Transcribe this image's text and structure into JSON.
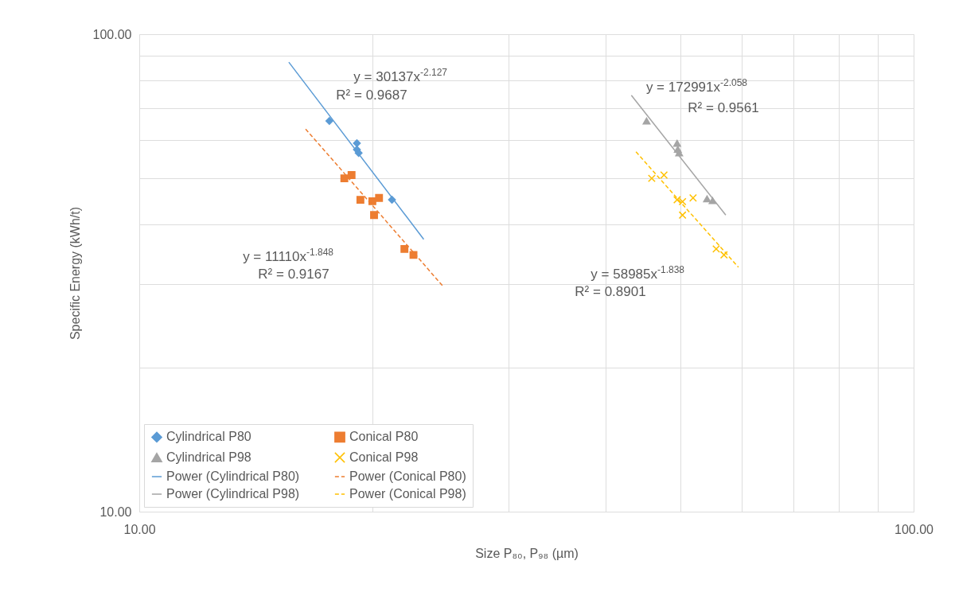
{
  "chart_data": {
    "type": "scatter",
    "xlabel": "Size P₈₀, P₉₈ (µm)",
    "ylabel": "Specific Energy (kWh/t)",
    "log": "xy",
    "grid": true,
    "legend": "bottom left",
    "xlim": [
      10,
      100
    ],
    "ylim": [
      10,
      100
    ],
    "xticks": [
      {
        "value": 10,
        "label": "10.00"
      },
      {
        "value": 20,
        "label": null
      },
      {
        "value": 30,
        "label": null
      },
      {
        "value": 40,
        "label": null
      },
      {
        "value": 50,
        "label": null
      },
      {
        "value": 60,
        "label": null
      },
      {
        "value": 70,
        "label": null
      },
      {
        "value": 80,
        "label": null
      },
      {
        "value": 90,
        "label": null
      },
      {
        "value": 100,
        "label": "100.00"
      }
    ],
    "yticks": [
      {
        "value": 10,
        "label": "10.00"
      },
      {
        "value": 20,
        "label": null
      },
      {
        "value": 30,
        "label": null
      },
      {
        "value": 40,
        "label": null
      },
      {
        "value": 50,
        "label": null
      },
      {
        "value": 60,
        "label": null
      },
      {
        "value": 70,
        "label": null
      },
      {
        "value": 80,
        "label": null
      },
      {
        "value": 90,
        "label": null
      },
      {
        "value": 100,
        "label": "100.00"
      }
    ],
    "series": [
      {
        "name": "Cylindrical P80",
        "marker": "diamond",
        "color": "#5b9bd5",
        "x": [
          17.6,
          19.1,
          19.1,
          19.2,
          21.2
        ],
        "values": [
          65.8,
          59.1,
          57.3,
          56.4,
          45.0
        ]
      },
      {
        "name": "Conical P80",
        "marker": "square",
        "color": "#ed7d31",
        "x": [
          18.4,
          18.8,
          19.3,
          20.0,
          20.4,
          20.1,
          22.0,
          22.6
        ],
        "values": [
          49.9,
          50.7,
          45.0,
          44.7,
          45.4,
          41.8,
          35.5,
          34.5
        ]
      },
      {
        "name": "Cylindrical P98",
        "marker": "triangle",
        "color": "#a5a5a5",
        "x": [
          45.2,
          49.5,
          49.6,
          49.8,
          54.1,
          55.0
        ],
        "values": [
          65.8,
          59.1,
          57.4,
          56.4,
          45.2,
          44.8
        ]
      },
      {
        "name": "Conical P98",
        "marker": "cross",
        "color": "#ffc000",
        "x": [
          45.9,
          47.6,
          49.5,
          50.3,
          51.9,
          50.3,
          55.6,
          56.9
        ],
        "values": [
          49.9,
          50.7,
          45.0,
          44.6,
          45.4,
          41.8,
          35.5,
          34.5
        ]
      },
      {
        "name": "Power (Cylindrical P80)",
        "type": "line",
        "line_style": "solid",
        "color": "#5b9bd5",
        "x": [
          15.6,
          23.3
        ],
        "values": [
          87.4,
          37.2
        ]
      },
      {
        "name": "Power (Conical P80)",
        "type": "line",
        "line_style": "dashed",
        "color": "#ed7d31",
        "x": [
          16.4,
          24.7
        ],
        "values": [
          63.3,
          29.6
        ]
      },
      {
        "name": "Power (Cylindrical P98)",
        "type": "line",
        "line_style": "solid",
        "color": "#a5a5a5",
        "x": [
          43.2,
          57.2
        ],
        "values": [
          74.5,
          41.8
        ]
      },
      {
        "name": "Power (Conical P98)",
        "type": "line",
        "line_style": "dashed",
        "color": "#ffc000",
        "x": [
          43.8,
          59.4
        ],
        "values": [
          56.7,
          32.5
        ]
      }
    ],
    "annotations": [
      "y = 30137x$^{-2.127}$",
      "R² = 0.9687",
      "y = 172991x$^{-2.058}$",
      "R² = 0.9561",
      "y = 11110x$^{-1.848}$",
      "R² = 0.9167",
      "y = 58985x$^{-1.838}$",
      "R² = 0.8901"
    ]
  }
}
